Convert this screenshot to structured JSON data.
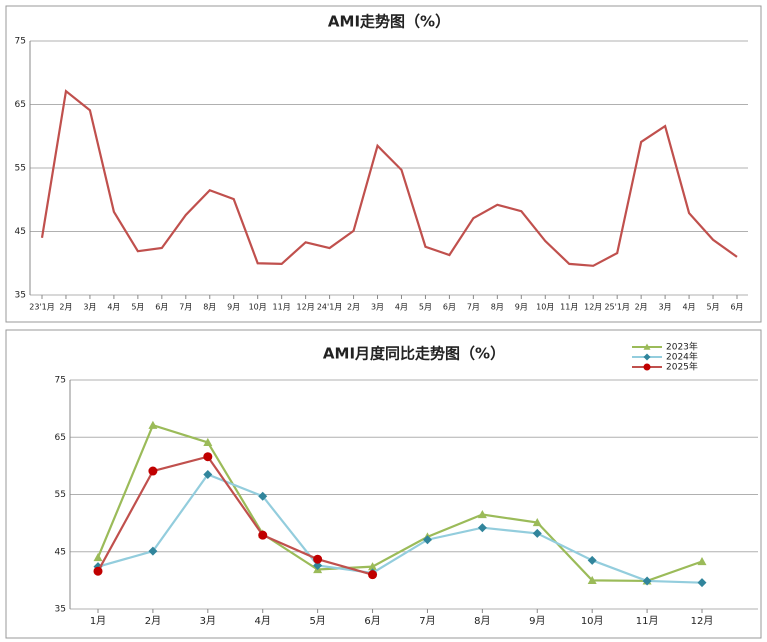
{
  "chart_data": [
    {
      "type": "line",
      "title": "AMI走势图（%）",
      "categories": [
        "23'1月",
        "2月",
        "3月",
        "4月",
        "5月",
        "6月",
        "7月",
        "8月",
        "9月",
        "10月",
        "11月",
        "12月",
        "24'1月",
        "2月",
        "3月",
        "4月",
        "5月",
        "6月",
        "7月",
        "8月",
        "9月",
        "10月",
        "11月",
        "12月",
        "25'1月",
        "2月",
        "3月",
        "4月",
        "5月",
        "6月"
      ],
      "series": [
        {
          "name": null,
          "color": "#c0504d",
          "values": [
            44.0,
            67.1,
            64.1,
            48.1,
            41.9,
            42.4,
            47.6,
            51.5,
            50.1,
            40.0,
            39.9,
            43.3,
            42.4,
            45.1,
            58.5,
            54.7,
            42.6,
            41.3,
            47.1,
            49.2,
            48.2,
            43.5,
            39.9,
            39.6,
            41.6,
            59.1,
            61.6,
            47.9,
            43.7,
            41.0
          ]
        }
      ],
      "ylim": [
        35,
        75
      ],
      "yticks": [
        35,
        45,
        55,
        65,
        75
      ],
      "grid": true
    },
    {
      "type": "line",
      "title": "AMI月度同比走势图（%）",
      "categories": [
        "1月",
        "2月",
        "3月",
        "4月",
        "5月",
        "6月",
        "7月",
        "8月",
        "9月",
        "10月",
        "11月",
        "12月"
      ],
      "series": [
        {
          "name": "2023年",
          "color": "#9bbb59",
          "marker": "triangle",
          "values": [
            44.0,
            67.1,
            64.1,
            48.1,
            41.9,
            42.4,
            47.6,
            51.5,
            50.1,
            40.0,
            39.9,
            43.3
          ]
        },
        {
          "name": "2024年",
          "color": "#93cddd",
          "marker": "diamond",
          "values": [
            42.4,
            45.1,
            58.5,
            54.7,
            42.6,
            41.3,
            47.1,
            49.2,
            48.2,
            43.5,
            39.9,
            39.6
          ]
        },
        {
          "name": "2025年",
          "color": "#c0504d",
          "marker": "circle",
          "values": [
            41.6,
            59.1,
            61.6,
            47.9,
            43.7,
            41.0,
            null,
            null,
            null,
            null,
            null,
            null
          ]
        }
      ],
      "ylim": [
        35,
        75
      ],
      "yticks": [
        35,
        45,
        55,
        65,
        75
      ],
      "grid": true,
      "legend": "top-right"
    }
  ]
}
